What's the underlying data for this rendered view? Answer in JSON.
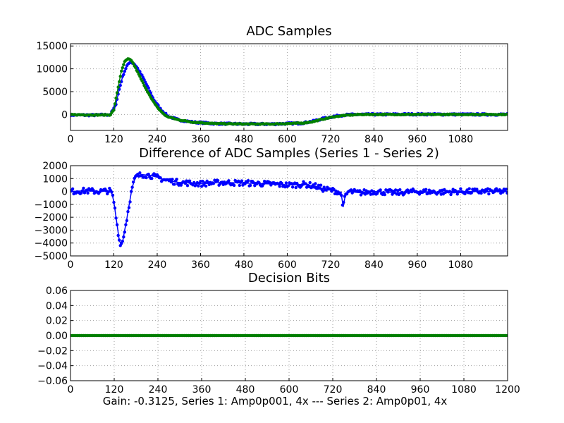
{
  "caption": "Gain: -0.3125, Series 1: Amp0p001, 4x --- Series 2: Amp0p01, 4x",
  "colors": {
    "series1": "#0000ff",
    "series2": "#007f00",
    "grid": "#a0a0a0",
    "axis": "#000000"
  },
  "chart_data": [
    {
      "type": "line",
      "title": "ADC Samples",
      "xlabel": "",
      "ylabel": "",
      "xlim": [
        0,
        1210
      ],
      "ylim": [
        -3500,
        15500
      ],
      "xticks": [
        "0",
        "120",
        "240",
        "360",
        "480",
        "600",
        "720",
        "840",
        "960",
        "1080"
      ],
      "yticks": [
        "15000",
        "10000",
        "5000",
        "0"
      ],
      "grid": true,
      "series": [
        {
          "color": "#0000ff",
          "marker": "dot",
          "x": [
            0,
            60,
            110,
            125,
            135,
            145,
            155,
            165,
            175,
            185,
            200,
            215,
            230,
            250,
            270,
            300,
            340,
            400,
            480,
            560,
            640,
            670,
            700,
            730,
            760,
            800,
            860,
            960,
            1080,
            1210
          ],
          "y": [
            -100,
            -150,
            -50,
            2000,
            5500,
            8500,
            10500,
            11500,
            11200,
            10200,
            8200,
            5800,
            3300,
            1100,
            -400,
            -1200,
            -1700,
            -2000,
            -2100,
            -2100,
            -1900,
            -1500,
            -900,
            -400,
            -100,
            0,
            0,
            50,
            0,
            0
          ]
        },
        {
          "color": "#007f00",
          "marker": "dot",
          "x": [
            0,
            60,
            110,
            120,
            130,
            140,
            150,
            160,
            170,
            180,
            195,
            210,
            225,
            245,
            265,
            300,
            340,
            400,
            480,
            560,
            640,
            670,
            700,
            730,
            760,
            800,
            860,
            960,
            1080,
            1210
          ],
          "y": [
            -50,
            -100,
            -100,
            1000,
            5200,
            9200,
            11600,
            12200,
            11700,
            10200,
            7800,
            5500,
            3300,
            1100,
            -400,
            -1200,
            -1700,
            -2000,
            -2100,
            -2100,
            -1900,
            -1600,
            -1000,
            -500,
            -200,
            0,
            0,
            0,
            0,
            0
          ]
        }
      ]
    },
    {
      "type": "line",
      "title": "Difference of ADC Samples (Series 1 - Series 2)",
      "xlabel": "",
      "ylabel": "",
      "xlim": [
        0,
        1210
      ],
      "ylim": [
        -5000,
        2000
      ],
      "xticks": [
        "0",
        "120",
        "240",
        "360",
        "480",
        "600",
        "720",
        "840",
        "960",
        "1080"
      ],
      "yticks": [
        "2000",
        "1000",
        "0",
        "−1000",
        "−2000",
        "−3000",
        "−4000",
        "−5000"
      ],
      "grid": true,
      "series": [
        {
          "color": "#0000ff",
          "marker": "dot",
          "x": [
            0,
            40,
            80,
            110,
            115,
            120,
            125,
            130,
            135,
            140,
            145,
            150,
            155,
            160,
            165,
            170,
            175,
            180,
            190,
            200,
            220,
            240,
            260,
            300,
            360,
            420,
            480,
            540,
            600,
            650,
            680,
            700,
            720,
            740,
            750,
            755,
            760,
            770,
            800,
            840,
            900,
            960,
            1020,
            1080,
            1140,
            1210
          ],
          "y": [
            0,
            50,
            0,
            50,
            -200,
            -800,
            -1800,
            -2800,
            -3800,
            -4100,
            -3800,
            -3000,
            -2300,
            -1400,
            -600,
            200,
            700,
            1100,
            1250,
            1300,
            1250,
            1100,
            900,
            700,
            600,
            700,
            650,
            600,
            500,
            550,
            400,
            200,
            100,
            0,
            -300,
            -1200,
            -400,
            0,
            -100,
            0,
            -100,
            0,
            -50,
            0,
            0,
            0
          ]
        }
      ]
    },
    {
      "type": "line",
      "title": "Decision Bits",
      "xlabel": "",
      "ylabel": "",
      "xlim": [
        0,
        1200
      ],
      "ylim": [
        -0.06,
        0.06
      ],
      "xticks": [
        "0",
        "120",
        "240",
        "360",
        "480",
        "600",
        "720",
        "840",
        "960",
        "1080",
        "1200"
      ],
      "yticks": [
        "0.06",
        "0.04",
        "0.02",
        "0.00",
        "−0.02",
        "−0.04",
        "−0.06"
      ],
      "grid": true,
      "series": [
        {
          "color": "#007f00",
          "marker": "dot",
          "x": [
            0,
            1200
          ],
          "y": [
            0,
            0
          ]
        }
      ]
    }
  ]
}
